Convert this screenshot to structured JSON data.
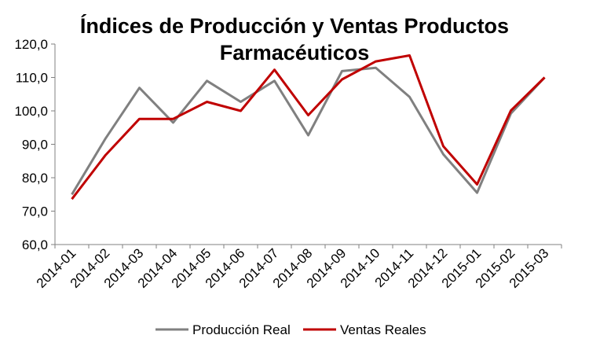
{
  "chart_data": {
    "type": "line",
    "title_lines": [
      "Índices de Producción y Ventas Productos",
      "Farmacéuticos"
    ],
    "xlabel": "",
    "ylabel": "",
    "ylim": [
      60,
      120
    ],
    "y_ticks": [
      "60,0",
      "70,0",
      "80,0",
      "90,0",
      "100,0",
      "110,0",
      "120,0"
    ],
    "grid": false,
    "legend_position": "bottom",
    "categories": [
      "2014-01",
      "2014-02",
      "2014-03",
      "2014-04",
      "2014-05",
      "2014-06",
      "2014-07",
      "2014-08",
      "2014-09",
      "2014-10",
      "2014-11",
      "2014-12",
      "2015-01",
      "2015-02",
      "2015-03"
    ],
    "series": [
      {
        "name": "Producción Real",
        "color": "#808080",
        "values": [
          75.0,
          91.8,
          106.9,
          96.5,
          109.0,
          102.7,
          109.0,
          92.7,
          111.9,
          112.9,
          104.2,
          87.0,
          75.5,
          99.2,
          110.0
        ]
      },
      {
        "name": "Ventas Reales",
        "color": "#c00000",
        "values": [
          73.6,
          86.8,
          97.6,
          97.6,
          102.7,
          100.0,
          112.3,
          98.7,
          109.4,
          114.8,
          116.6,
          89.4,
          78.0,
          100.1,
          110.0
        ]
      }
    ]
  }
}
